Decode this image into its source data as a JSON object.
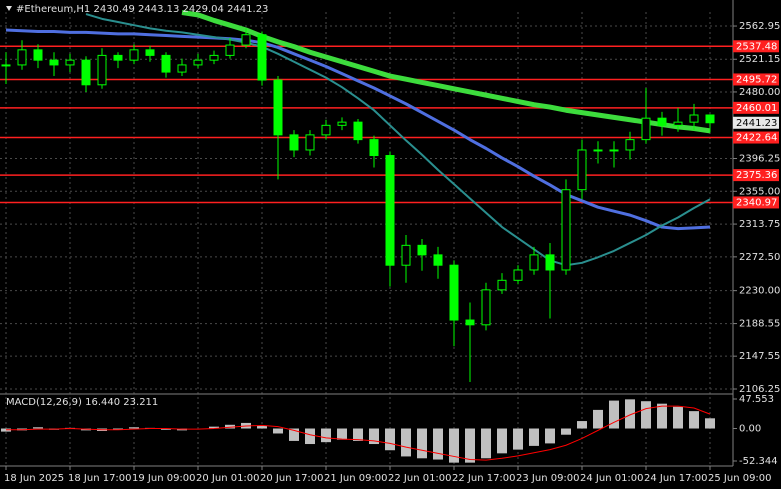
{
  "chart_data": [
    {
      "type": "candlestick",
      "title": "#Ethereum,H1  2430.49 2443.13 2429.04 2441.23",
      "categories": [
        "18 Jun 2025",
        null,
        null,
        null,
        "18 Jun 17:00",
        null,
        null,
        null,
        "19 Jun 09:00",
        null,
        null,
        null,
        "20 Jun 01:00",
        null,
        null,
        null,
        "20 Jun 17:00",
        null,
        null,
        null,
        "21 Jun 09:00",
        null,
        null,
        null,
        "22 Jun 01:00",
        null,
        null,
        null,
        "22 Jun 17:00",
        null,
        null,
        null,
        "23 Jun 09:00",
        null,
        null,
        null,
        "24 Jun 01:00",
        null,
        null,
        null,
        "24 Jun 17:00",
        null,
        null,
        null,
        "25 Jun 09:00"
      ],
      "close": [
        2514,
        2533,
        2520,
        2514,
        2520,
        2489,
        2526,
        2520,
        2533,
        2526,
        2505,
        2514,
        2520,
        2526,
        2539,
        2552,
        2495,
        2426,
        2407,
        2426,
        2438,
        2442,
        2420,
        2400,
        2262,
        2287,
        2275,
        2262,
        2193,
        2187,
        2231,
        2243,
        2256,
        2275,
        2256,
        2357,
        2407,
        2407,
        2407,
        2420,
        2447,
        2438,
        2442,
        2451,
        2441.23
      ],
      "high": [
        2530,
        2545,
        2540,
        2530,
        2528,
        2525,
        2535,
        2530,
        2540,
        2538,
        2530,
        2522,
        2528,
        2532,
        2548,
        2560,
        2556,
        2500,
        2432,
        2432,
        2445,
        2448,
        2446,
        2425,
        2405,
        2300,
        2295,
        2285,
        2268,
        2215,
        2240,
        2252,
        2262,
        2285,
        2290,
        2370,
        2420,
        2418,
        2418,
        2430,
        2485,
        2455,
        2460,
        2465,
        2452
      ],
      "low": [
        2490,
        2508,
        2510,
        2500,
        2505,
        2480,
        2484,
        2510,
        2515,
        2518,
        2498,
        2500,
        2510,
        2515,
        2522,
        2535,
        2488,
        2370,
        2398,
        2400,
        2420,
        2432,
        2415,
        2385,
        2235,
        2240,
        2255,
        2245,
        2160,
        2115,
        2180,
        2226,
        2238,
        2250,
        2195,
        2250,
        2345,
        2390,
        2385,
        2395,
        2415,
        2425,
        2430,
        2432,
        2429.04
      ],
      "color": "#00ff00",
      "lines": [
        {
          "color": "#3ddc3d",
          "width": 5,
          "values": [
            null,
            null,
            null,
            null,
            null,
            null,
            null,
            null,
            null,
            null,
            null,
            2580,
            2577,
            2570,
            2564,
            2558,
            2550,
            2543,
            2537,
            2530,
            2524,
            2518,
            2512,
            2506,
            2500,
            2496,
            2492,
            2488,
            2484,
            2480,
            2476,
            2472,
            2468,
            2464,
            2461,
            2457,
            2454,
            2451,
            2448,
            2445,
            2442,
            2439,
            2436,
            2434,
            2431
          ]
        },
        {
          "color": "#4f6fe0",
          "width": 3,
          "values": [
            2558,
            2557,
            2556,
            2556,
            2555,
            2555,
            2554,
            2553,
            2553,
            2552,
            2551,
            2550,
            2549,
            2548,
            2547,
            2545,
            2542,
            2536,
            2528,
            2520,
            2512,
            2503,
            2494,
            2485,
            2475,
            2465,
            2454,
            2443,
            2432,
            2420,
            2409,
            2397,
            2386,
            2374,
            2363,
            2351,
            2343,
            2335,
            2330,
            2325,
            2318,
            2310,
            2308,
            2309,
            2310
          ]
        },
        {
          "color": "#2a8f8f",
          "width": 2,
          "values": [
            null,
            null,
            null,
            null,
            null,
            2578,
            2572,
            2568,
            2564,
            2560,
            2557,
            2555,
            2552,
            2549,
            2546,
            2542,
            2537,
            2528,
            2518,
            2508,
            2498,
            2486,
            2472,
            2457,
            2438,
            2419,
            2401,
            2382,
            2364,
            2346,
            2328,
            2310,
            2296,
            2282,
            2268,
            2262,
            2265,
            2272,
            2280,
            2290,
            2300,
            2312,
            2322,
            2334,
            2345
          ]
        }
      ],
      "levels": [
        2537.48,
        2495.72,
        2460.01,
        2422.64,
        2375.36,
        2340.97
      ],
      "level_color": "#ff2020",
      "last_price": 2441.23,
      "ylim": [
        2101.2,
        2580.6
      ],
      "yticks": [
        2562.95,
        2521.15,
        {
          "value": 2480,
          "label": "2480.00"
        },
        2396.25,
        {
          "value": 2355,
          "label": "2355.00"
        },
        2313.75,
        {
          "value": 2272.5,
          "label": "2272.50"
        },
        {
          "value": 2230,
          "label": "2230.00"
        },
        2188.55,
        2147.55,
        2106.25
      ],
      "grid": true
    },
    {
      "type": "macd",
      "title": "MACD(12,26,9) 16.440 23.211",
      "values": [
        -5,
        -3,
        2,
        -2,
        1,
        -3,
        -4,
        -2,
        2,
        1,
        -2,
        -3,
        0,
        3,
        6,
        9,
        4,
        -8,
        -20,
        -25,
        -22,
        -18,
        -20,
        -25,
        -35,
        -45,
        -48,
        -50,
        -55,
        -55,
        -48,
        -40,
        -34,
        -28,
        -24,
        -10,
        12,
        30,
        45,
        47,
        44,
        40,
        35,
        28,
        16.44
      ],
      "signal": [
        -2,
        -2,
        -1,
        -1,
        0,
        -1,
        -2,
        -2,
        -1,
        0,
        0,
        -1,
        -1,
        0,
        2,
        4,
        5,
        3,
        -3,
        -10,
        -15,
        -17,
        -18,
        -20,
        -24,
        -30,
        -35,
        -40,
        -45,
        -50,
        -51,
        -48,
        -44,
        -39,
        -34,
        -27,
        -16,
        -3,
        10,
        22,
        32,
        36,
        36,
        33,
        23.211
      ],
      "color": "#c0c0c0",
      "signal_color": "#ff0000",
      "ylim": [
        -60.4,
        54
      ],
      "yticks": [
        47.553,
        {
          "value": 0,
          "label": "0.00"
        },
        -52.344
      ]
    }
  ]
}
